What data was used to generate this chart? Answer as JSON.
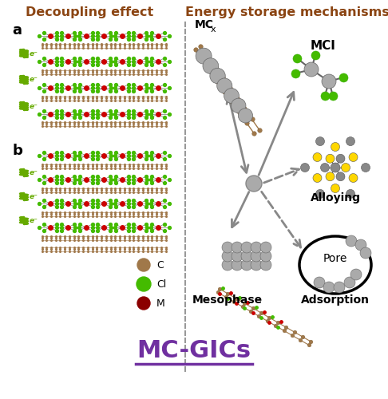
{
  "title": "MC-GICs",
  "title_color": "#7030A0",
  "title_fontsize": 22,
  "bg_color": "#ffffff",
  "left_title": "Decoupling effect",
  "left_title_color": "#8B4513",
  "right_title": "Energy storage mechanisms",
  "right_title_color": "#8B4513",
  "graphite_color": "#A0784A",
  "chloride_color": "#CC0000",
  "Cl_atom_color": "#44BB00",
  "metal_color": "#888888",
  "metal_light": "#AAAAAA",
  "yellow_color": "#FFD700",
  "arrow_color": "#888888",
  "spring_color": "#66AA00"
}
